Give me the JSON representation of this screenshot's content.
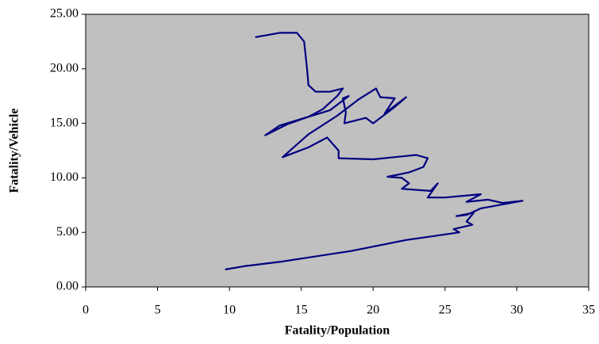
{
  "chart_data": {
    "type": "line",
    "x_label": "Fatality/Population",
    "y_label": "Fatality/Vehicle",
    "color": "#000080",
    "plot_background": "#c0c0c0",
    "grid": false,
    "xlim": [
      0,
      35
    ],
    "xticks": [
      0,
      5,
      10,
      15,
      20,
      25,
      30,
      35
    ],
    "ylim": [
      0,
      25
    ],
    "yticks": [
      {
        "value": 0,
        "label": "0.00"
      },
      {
        "value": 5,
        "label": "5.00"
      },
      {
        "value": 10,
        "label": "10.00"
      },
      {
        "value": 15,
        "label": "15.00"
      },
      {
        "value": 20,
        "label": "20.00"
      },
      {
        "value": 25,
        "label": "25.00"
      }
    ],
    "x": [
      11.8,
      13.5,
      14.7,
      15.2,
      15.4,
      15.5,
      16.0,
      17.0,
      17.9,
      17.5,
      16.5,
      15.5,
      14.0,
      12.5,
      13.5,
      15.0,
      17.0,
      18.3,
      17.9,
      18.1,
      18.0,
      19.5,
      20.0,
      21.5,
      22.3,
      20.8,
      21.5,
      20.5,
      20.2,
      19.0,
      17.5,
      15.5,
      13.7,
      15.5,
      16.8,
      17.6,
      17.6,
      20.0,
      23.0,
      23.8,
      23.5,
      22.5,
      21.0,
      22.0,
      22.5,
      22.0,
      24.0,
      24.5,
      23.8,
      25.0,
      27.5,
      26.5,
      28.0,
      29.0,
      30.4,
      27.5,
      26.5,
      25.8,
      27.0,
      26.5,
      26.9,
      25.6,
      26.0,
      22.3,
      18.5,
      13.5,
      11.0,
      9.7
    ],
    "y": [
      22.9,
      23.3,
      23.3,
      22.5,
      20.0,
      18.5,
      17.9,
      17.9,
      18.2,
      17.5,
      16.3,
      15.6,
      14.9,
      13.9,
      14.8,
      15.4,
      16.2,
      17.5,
      17.3,
      16.0,
      15.0,
      15.5,
      15.0,
      16.5,
      17.4,
      15.9,
      17.3,
      17.4,
      18.2,
      17.2,
      15.7,
      14.0,
      11.9,
      12.8,
      13.7,
      12.5,
      11.8,
      11.7,
      12.1,
      11.8,
      11.0,
      10.5,
      10.1,
      10.0,
      9.5,
      9.0,
      8.8,
      9.5,
      8.2,
      8.2,
      8.5,
      7.8,
      8.0,
      7.7,
      7.9,
      7.2,
      6.6,
      6.5,
      6.8,
      6.0,
      5.7,
      5.3,
      5.0,
      4.3,
      3.3,
      2.3,
      1.9,
      1.6
    ]
  }
}
